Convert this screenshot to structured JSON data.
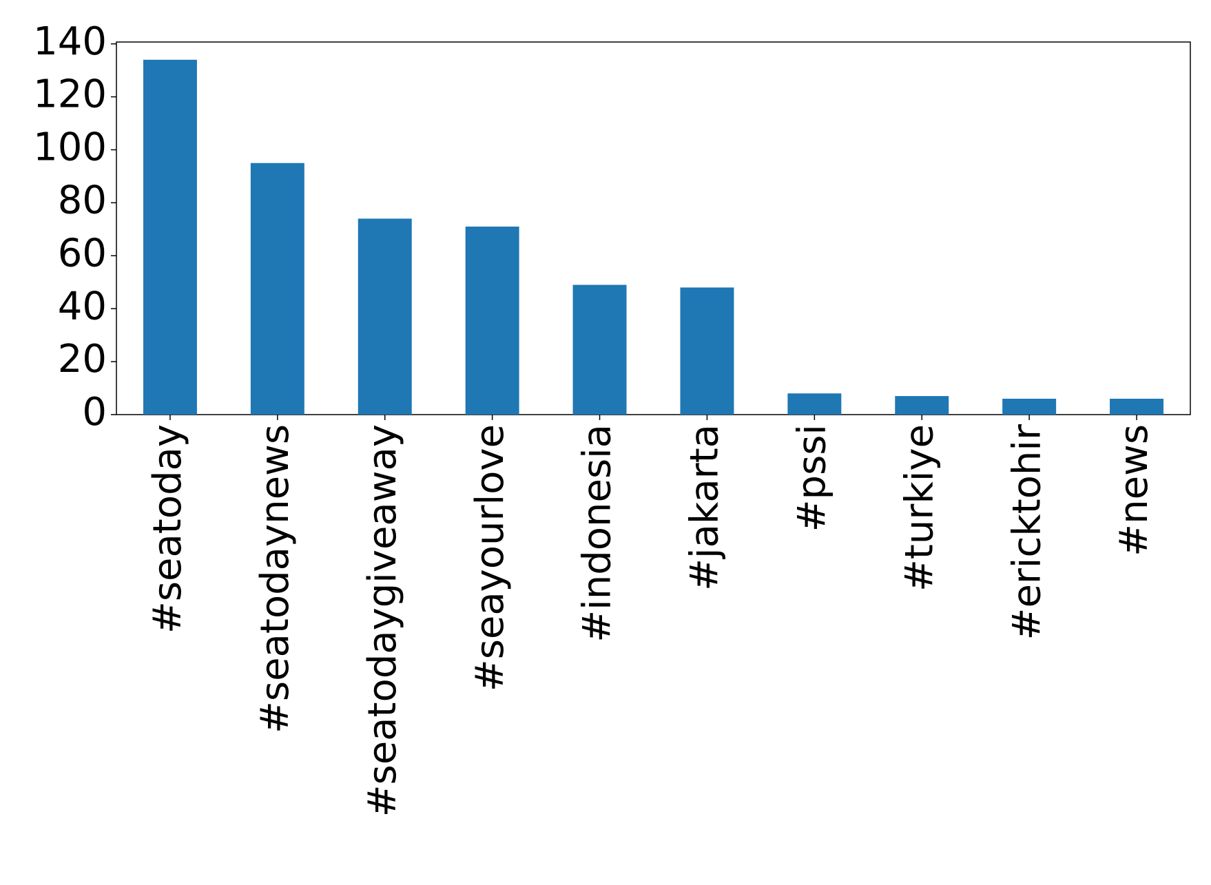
{
  "chart_data": {
    "type": "bar",
    "categories": [
      "#seatoday",
      "#seatodaynews",
      "#seatodaygiveaway",
      "#seayourlove",
      "#indonesia",
      "#jakarta",
      "#pssi",
      "#turkiye",
      "#ericktohir",
      "#news"
    ],
    "values": [
      134,
      95,
      74,
      71,
      49,
      48,
      8,
      7,
      6,
      6
    ],
    "color": "#1f77b4",
    "ylim": [
      0,
      140.7
    ],
    "yticks": [
      0,
      20,
      40,
      60,
      80,
      100,
      120,
      140
    ],
    "grid": false
  }
}
